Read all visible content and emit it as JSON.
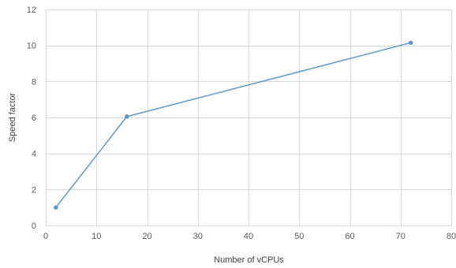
{
  "chart_data": {
    "type": "scatter",
    "title": "",
    "xlabel": "Number of vCPUs",
    "ylabel": "Speed factor",
    "xlim": [
      0,
      80
    ],
    "ylim": [
      0,
      12
    ],
    "x_ticks": [
      "0",
      "10",
      "20",
      "30",
      "40",
      "50",
      "60",
      "70",
      "80"
    ],
    "y_ticks": [
      "0",
      "2",
      "4",
      "6",
      "8",
      "10",
      "12"
    ],
    "grid": true,
    "legend": "none",
    "series": [
      {
        "color": "#5b9bd5",
        "x": [
          2,
          16,
          72
        ],
        "y": [
          1.0,
          6.05,
          10.15
        ]
      }
    ]
  }
}
